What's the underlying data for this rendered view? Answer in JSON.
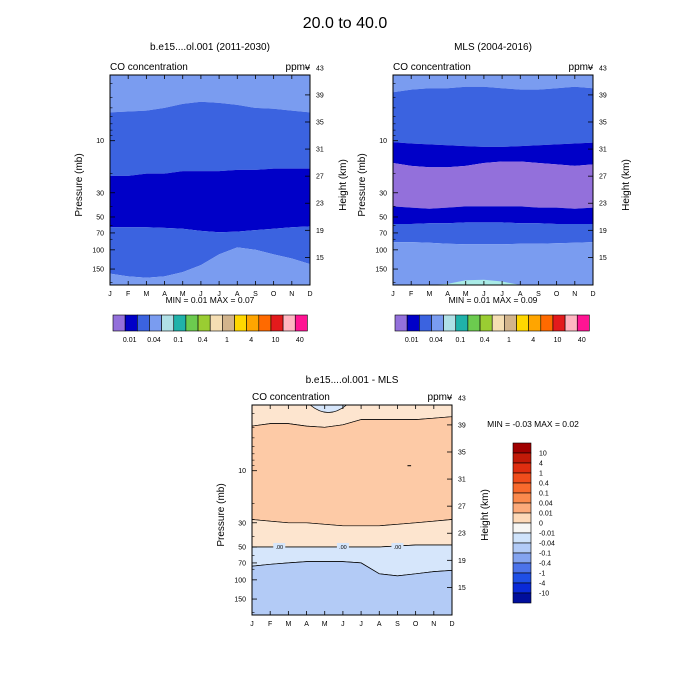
{
  "figure": {
    "title": "20.0 to  40.0"
  },
  "colors": {
    "cyan_band": "#a9ebe6",
    "min_color": "#9370db",
    "dark_blue": "#0000c8",
    "mid_blue": "#3b63e0",
    "light_blue": "#7a9cf0"
  },
  "chart_data": [
    {
      "type": "contour",
      "title": "b.e15....ol.001 (2011-2030)",
      "left_label": "CO concentration",
      "right_label": "ppmv",
      "xlabel": "",
      "ylabel": "Pressure (mb)",
      "ylabel_right": "Height (km)",
      "x_ticks": [
        "J",
        "F",
        "M",
        "A",
        "M",
        "J",
        "J",
        "A",
        "S",
        "O",
        "N",
        "D"
      ],
      "p_ticks": [
        "10",
        "30",
        "50",
        "70",
        "100",
        "150"
      ],
      "height_ticks": [
        "43",
        "39",
        "35",
        "31",
        "27",
        "23",
        "19",
        "15"
      ],
      "stats": "MIN =  0.01  MAX =  0.07",
      "levels_ppmv": [
        0.01,
        0.02,
        0.04,
        0.07,
        0.1,
        0.2,
        0.4,
        0.7,
        1,
        2,
        4,
        7,
        10,
        20,
        40,
        70
      ],
      "bands": [
        {
          "color_key": "light_blue",
          "top_mb": [
            2.5,
            2.5,
            2.5,
            2.5,
            2.5,
            2.5,
            2.5,
            2.5,
            2.5,
            2.5,
            2.5,
            2.5
          ],
          "bottom_mb": [
            5.5,
            5.4,
            5.3,
            5.0,
            4.6,
            4.4,
            4.5,
            4.7,
            5.0,
            5.1,
            5.3,
            5.5
          ]
        },
        {
          "color_key": "mid_blue",
          "top_mb": [
            5.5,
            5.4,
            5.3,
            5.0,
            4.6,
            4.4,
            4.5,
            4.7,
            5.0,
            5.1,
            5.3,
            5.5
          ],
          "bottom_mb": [
            21,
            21,
            20,
            20,
            19,
            19,
            19,
            18.5,
            18.5,
            18,
            18,
            18
          ]
        },
        {
          "color_key": "dark_blue",
          "top_mb": [
            21,
            21,
            20,
            20,
            19,
            19,
            19,
            18.5,
            18.5,
            18,
            18,
            18
          ],
          "bottom_mb": [
            62,
            62,
            62,
            63,
            64,
            67,
            69,
            68,
            66,
            64,
            62,
            61
          ]
        },
        {
          "color_key": "mid_blue",
          "top_mb": [
            62,
            62,
            62,
            63,
            64,
            67,
            69,
            68,
            66,
            64,
            62,
            61
          ],
          "bottom_mb": [
            165,
            175,
            180,
            175,
            160,
            138,
            110,
            95,
            100,
            110,
            120,
            135
          ]
        },
        {
          "color_key": "light_blue",
          "top_mb": [
            165,
            175,
            180,
            175,
            160,
            138,
            110,
            95,
            100,
            110,
            120,
            135
          ],
          "bottom_mb": [
            210,
            210,
            210,
            210,
            210,
            210,
            210,
            210,
            210,
            210,
            210,
            210
          ]
        }
      ],
      "colorbar_labels": [
        "0.01",
        "0.04",
        "0.1",
        "0.4",
        "1",
        "4",
        "10",
        "40"
      ]
    },
    {
      "type": "contour",
      "title": "MLS (2004-2016)",
      "left_label": "CO concentration",
      "right_label": "ppmv",
      "xlabel": "",
      "ylabel": "Pressure (mb)",
      "ylabel_right": "Height (km)",
      "x_ticks": [
        "J",
        "F",
        "M",
        "A",
        "M",
        "J",
        "J",
        "A",
        "S",
        "O",
        "N",
        "D"
      ],
      "p_ticks": [
        "10",
        "30",
        "50",
        "70",
        "100",
        "150"
      ],
      "height_ticks": [
        "43",
        "39",
        "35",
        "31",
        "27",
        "23",
        "19",
        "15"
      ],
      "stats": "MIN =  0.01  MAX =  0.09",
      "levels_ppmv": [
        0.01,
        0.02,
        0.04,
        0.07,
        0.1,
        0.2,
        0.4,
        0.7,
        1,
        2,
        4,
        7,
        10,
        20,
        40,
        70
      ],
      "bands": [
        {
          "color_key": "light_blue",
          "top_mb": [
            2.5,
            2.5,
            2.5,
            2.5,
            2.5,
            2.5,
            2.5,
            2.5,
            2.5,
            2.5,
            2.5,
            2.5
          ],
          "bottom_mb": [
            3.6,
            3.4,
            3.3,
            3.3,
            3.2,
            3.2,
            3.3,
            3.4,
            3.4,
            3.3,
            3.2,
            3.3
          ]
        },
        {
          "color_key": "mid_blue",
          "top_mb": [
            3.6,
            3.4,
            3.3,
            3.3,
            3.2,
            3.2,
            3.3,
            3.4,
            3.4,
            3.3,
            3.2,
            3.3
          ],
          "bottom_mb": [
            10.3,
            10.6,
            10.8,
            11,
            11.2,
            11.4,
            11.4,
            11.2,
            11,
            10.8,
            10.6,
            10.4
          ]
        },
        {
          "color_key": "dark_blue",
          "top_mb": [
            10.3,
            10.6,
            10.8,
            11,
            11.2,
            11.4,
            11.4,
            11.2,
            11,
            10.8,
            10.6,
            10.4
          ],
          "bottom_mb": [
            16,
            17,
            17.5,
            17.5,
            17,
            16,
            15.5,
            15.5,
            16,
            16.5,
            17,
            16.5
          ]
        },
        {
          "color_key": "min_color",
          "top_mb": [
            16,
            17,
            17.5,
            17.5,
            17,
            16,
            15.5,
            15.5,
            16,
            16.5,
            17,
            16.5
          ],
          "bottom_mb": [
            40,
            41,
            42,
            41,
            40,
            40,
            40,
            40,
            41,
            41,
            42,
            41
          ]
        },
        {
          "color_key": "dark_blue",
          "top_mb": [
            40,
            41,
            42,
            41,
            40,
            40,
            40,
            40,
            41,
            41,
            42,
            41
          ],
          "bottom_mb": [
            58,
            58,
            57,
            57,
            56,
            56,
            56,
            57,
            57,
            58,
            58,
            58
          ]
        },
        {
          "color_key": "mid_blue",
          "top_mb": [
            58,
            58,
            57,
            57,
            56,
            56,
            56,
            57,
            57,
            58,
            58,
            58
          ],
          "bottom_mb": [
            85,
            85,
            86,
            88,
            89,
            89,
            89,
            88,
            88,
            87,
            86,
            85
          ]
        },
        {
          "color_key": "light_blue",
          "top_mb": [
            85,
            85,
            86,
            88,
            89,
            89,
            89,
            88,
            88,
            87,
            86,
            85
          ],
          "bottom_mb": [
            210,
            210,
            210,
            210,
            210,
            210,
            210,
            210,
            210,
            210,
            210,
            210
          ]
        },
        {
          "color_key": "cyan_band",
          "top_mb": [
            210,
            210,
            210,
            205,
            190,
            188,
            195,
            210,
            210,
            210,
            210,
            210
          ],
          "bottom_mb": [
            210,
            210,
            210,
            210,
            210,
            210,
            210,
            210,
            210,
            210,
            210,
            210
          ]
        }
      ],
      "colorbar_labels": [
        "0.01",
        "0.04",
        "0.1",
        "0.4",
        "1",
        "4",
        "10",
        "40"
      ]
    },
    {
      "type": "contour",
      "title": "b.e15....ol.001 - MLS",
      "left_label": "CO concentration",
      "right_label": "ppmv",
      "xlabel": "",
      "ylabel": "Pressure (mb)",
      "ylabel_right": "Height (km)",
      "x_ticks": [
        "J",
        "F",
        "M",
        "A",
        "M",
        "J",
        "J",
        "A",
        "S",
        "O",
        "N",
        "D"
      ],
      "p_ticks": [
        "10",
        "30",
        "50",
        "70",
        "100",
        "150"
      ],
      "height_ticks": [
        "43",
        "39",
        "35",
        "31",
        "27",
        "23",
        "19",
        "15"
      ],
      "stats": "MIN =  -0.03  MAX =   0.02",
      "contour_labels": [
        ".00",
        ".00",
        ".00"
      ],
      "bands": [
        {
          "color_key": "peach_1",
          "top_mb": [
            2.5,
            2.5,
            2.5,
            2.5,
            2.5,
            2.5,
            2.5,
            2.5,
            2.5,
            2.5,
            2.5,
            2.5
          ],
          "bottom_mb": [
            3.9,
            3.7,
            3.7,
            3.9,
            4.0,
            3.8,
            3.4,
            3.4,
            3.4,
            3.4,
            3.3,
            3.2
          ]
        },
        {
          "color_key": "peach_2",
          "top_mb": [
            3.9,
            3.7,
            3.7,
            3.9,
            4.0,
            3.8,
            3.4,
            3.4,
            3.4,
            3.4,
            3.3,
            3.2
          ],
          "bottom_mb": [
            28,
            29,
            30,
            30,
            31,
            32,
            32,
            32,
            31,
            30,
            29,
            28
          ]
        },
        {
          "color_key": "peach_1",
          "top_mb": [
            28,
            29,
            30,
            30,
            31,
            32,
            32,
            32,
            31,
            30,
            29,
            28
          ],
          "bottom_mb": [
            50,
            50,
            50,
            50,
            50,
            50,
            50,
            50,
            49,
            48,
            48,
            48
          ]
        },
        {
          "color_key": "neg_1",
          "top_mb": [
            50,
            50,
            50,
            50,
            50,
            50,
            50,
            50,
            49,
            48,
            48,
            48
          ],
          "bottom_mb": [
            75,
            72,
            70,
            68,
            68,
            68,
            70,
            88,
            92,
            88,
            84,
            82
          ]
        },
        {
          "color_key": "neg_2",
          "top_mb": [
            75,
            72,
            70,
            68,
            68,
            68,
            70,
            88,
            92,
            88,
            84,
            82
          ],
          "bottom_mb": [
            210,
            210,
            210,
            210,
            210,
            210,
            210,
            210,
            210,
            210,
            210,
            210
          ]
        }
      ],
      "top_blob": {
        "color_key": "neg_1",
        "x_months": [
          3.2,
          5.2
        ],
        "bottom_mb": 2.9
      },
      "colorbar": {
        "labels": [
          "10",
          "4",
          "1",
          "0.4",
          "0.1",
          "0.04",
          "0.01",
          "0",
          "-0.01",
          "-0.04",
          "-0.1",
          "-0.4",
          "-1",
          "-4",
          "-10"
        ],
        "colors": [
          "#a00000",
          "#c21a08",
          "#df2e10",
          "#f04d1c",
          "#f86a2d",
          "#fb8a4d",
          "#fcaa7a",
          "#fdd9b8",
          "#f6f6f4",
          "#cfe3fb",
          "#b2cbf7",
          "#84a4f0",
          "#4c73ea",
          "#1f4fe6",
          "#0a2ad8",
          "#000e9c"
        ]
      }
    }
  ],
  "palette_top": [
    "#9370db",
    "#0000c8",
    "#3b63e0",
    "#7a9cf0",
    "#b0e0e6",
    "#20b2aa",
    "#6ccb4f",
    "#9acd32",
    "#f5deb3",
    "#d2b48c",
    "#ffd700",
    "#ffa500",
    "#ff6a00",
    "#e31a1c",
    "#ffb6c1",
    "#ff1493"
  ],
  "diff_colors": {
    "peach_1": "#fde5cf",
    "peach_2": "#fdcaa6",
    "neg_1": "#d6e6fb",
    "neg_2": "#b3cbf6"
  }
}
